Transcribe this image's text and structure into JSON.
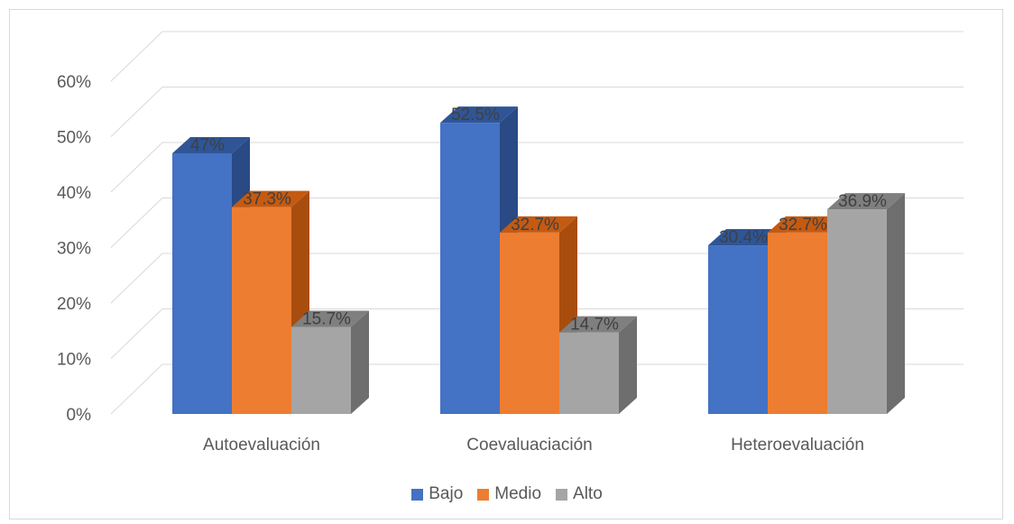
{
  "chart_data": {
    "type": "bar",
    "three_d": true,
    "categories": [
      "Autoevaluación",
      "Coevaluaciación",
      "Heteroevaluación"
    ],
    "series": [
      {
        "name": "Bajo",
        "values": [
          47,
          52.5,
          30.4
        ],
        "labels": [
          "47%",
          "52.5%",
          "30.4%"
        ]
      },
      {
        "name": "Medio",
        "values": [
          37.3,
          32.7,
          32.7
        ],
        "labels": [
          "37.3%",
          "32.7%",
          "32.7%"
        ]
      },
      {
        "name": "Alto",
        "values": [
          15.7,
          14.7,
          36.9
        ],
        "labels": [
          "15.7%",
          "14.7%",
          "36.9%"
        ]
      }
    ],
    "y_ticks": [
      "0%",
      "10%",
      "20%",
      "30%",
      "40%",
      "50%",
      "60%"
    ],
    "ylim": [
      0,
      60
    ],
    "grid": true,
    "legend_position": "bottom",
    "colors": {
      "Bajo": {
        "front": "#4472c4",
        "top": "#2f5597",
        "side": "#2a4a85"
      },
      "Medio": {
        "front": "#ed7d31",
        "top": "#c55a11",
        "side": "#a84d0e"
      },
      "Alto": {
        "front": "#a5a5a5",
        "top": "#7f7f7f",
        "side": "#6e6e6e"
      }
    }
  }
}
